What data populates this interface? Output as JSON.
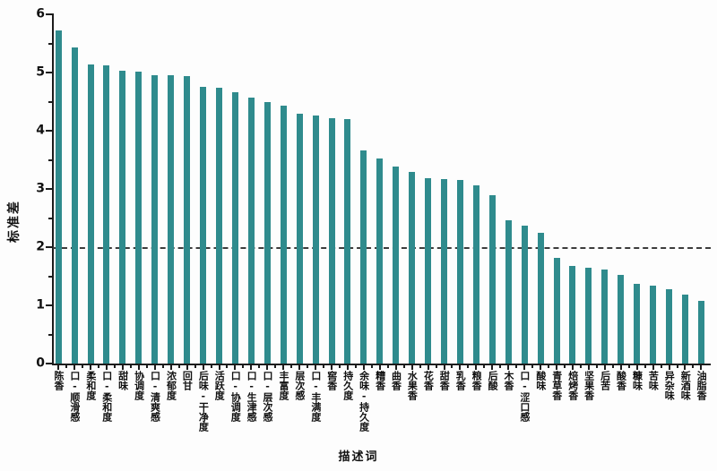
{
  "colors": {
    "bar": "#2f8b8d",
    "axis": "#1c1c1c",
    "background": "#fdfdfd",
    "reference_line": "#3c3c3c"
  },
  "chart_data": {
    "type": "bar",
    "title": "",
    "xlabel": "描述词",
    "ylabel": "标准差",
    "ylim": [
      0,
      6
    ],
    "yticks": [
      0,
      1,
      2,
      3,
      4,
      5,
      6
    ],
    "grid": false,
    "legend": false,
    "reference_line_y": 2,
    "reference_line_style": "dashed",
    "categories": [
      "陈香",
      "口-顺滑感",
      "柔和度",
      "口-柔和度",
      "甜味",
      "协调度",
      "口-清爽感",
      "浓郁度",
      "回甘",
      "后味-干净度",
      "活跃度",
      "口-协调度",
      "口-生津感",
      "口-层次感",
      "丰富度",
      "层次感",
      "口-丰满度",
      "窖香",
      "持久度",
      "余味-持久度",
      "糟香",
      "曲香",
      "水果香",
      "花香",
      "甜香",
      "乳香",
      "粮香",
      "后酸",
      "木香",
      "口-涩口感",
      "酸味",
      "青草香",
      "焙烤香",
      "坚果香",
      "后苦",
      "酸香",
      "糠味",
      "苦味",
      "异杂味",
      "新酒味",
      "油脂香"
    ],
    "values": [
      5.72,
      5.43,
      5.14,
      5.12,
      5.03,
      5.01,
      4.96,
      4.95,
      4.94,
      4.75,
      4.74,
      4.66,
      4.57,
      4.49,
      4.43,
      4.29,
      4.26,
      4.21,
      4.2,
      3.66,
      3.52,
      3.39,
      3.29,
      3.18,
      3.17,
      3.15,
      3.06,
      2.89,
      2.46,
      2.37,
      2.25,
      1.81,
      1.67,
      1.65,
      1.62,
      1.52,
      1.37,
      1.34,
      1.27,
      1.19,
      1.08
    ]
  }
}
